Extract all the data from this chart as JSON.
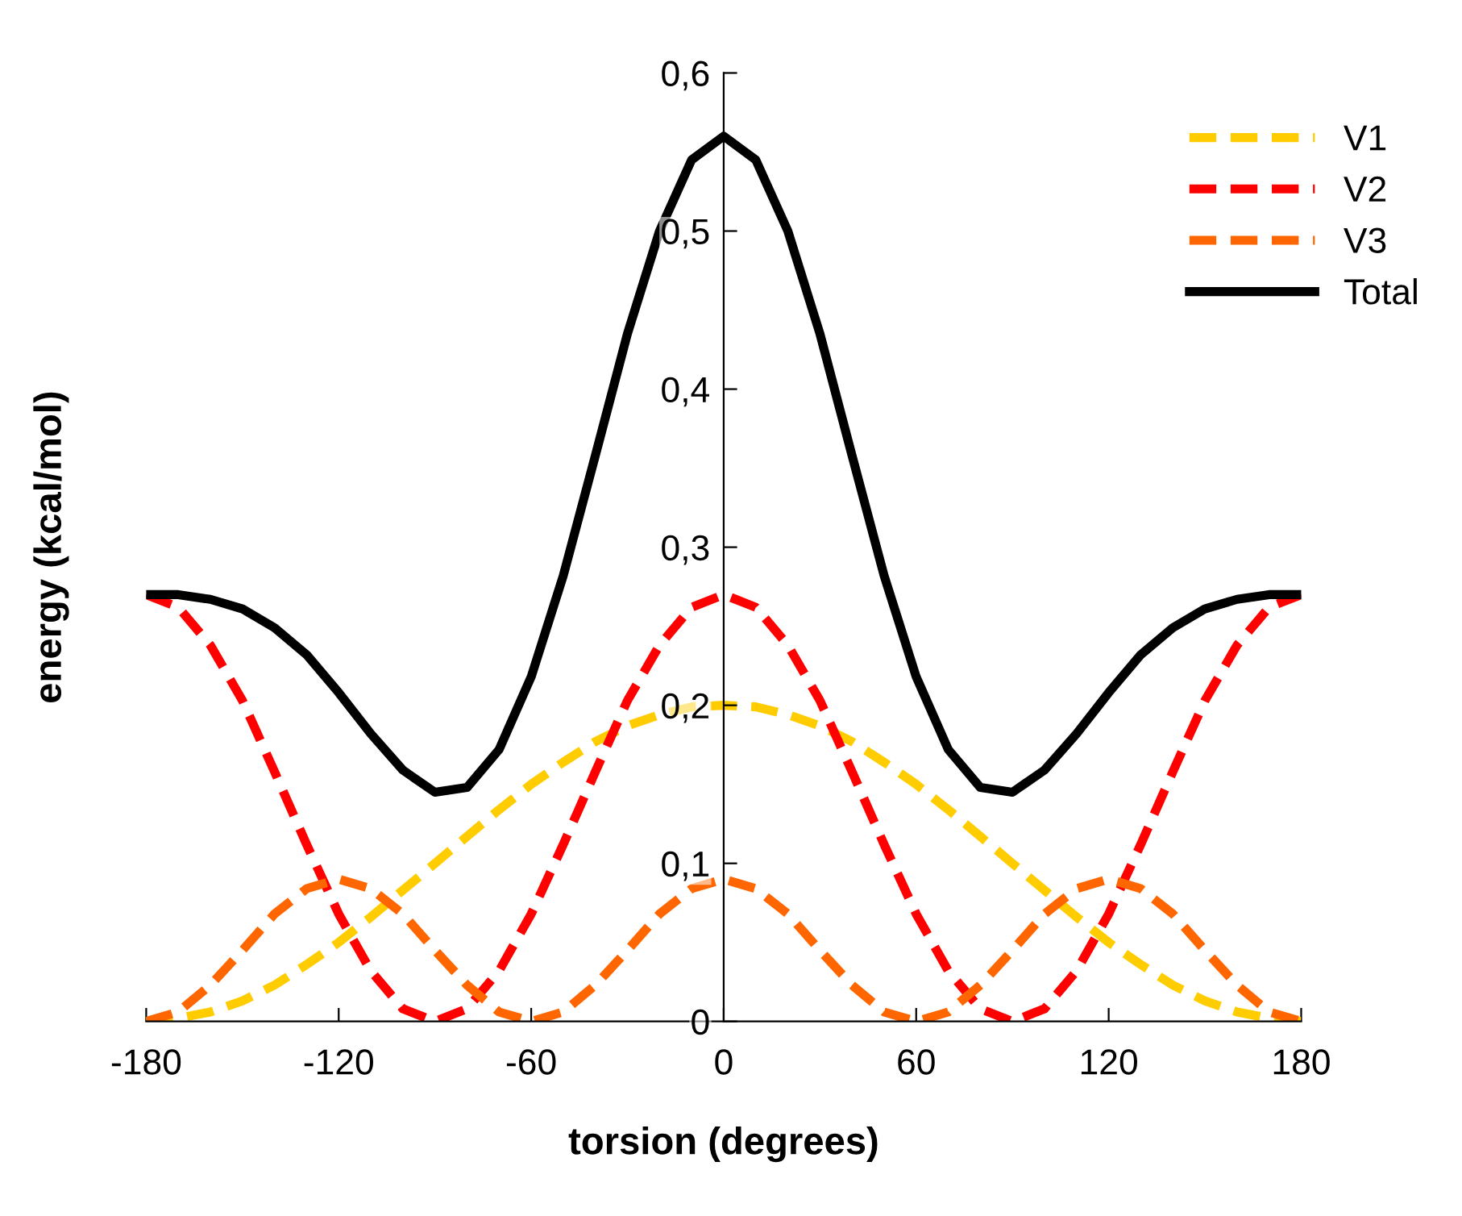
{
  "chart_data": {
    "type": "line",
    "xlabel": "torsion (degrees)",
    "ylabel": "energy (kcal/mol)",
    "x": [
      -180,
      -170,
      -160,
      -150,
      -140,
      -130,
      -120,
      -110,
      -100,
      -90,
      -80,
      -70,
      -60,
      -50,
      -40,
      -30,
      -20,
      -10,
      0,
      10,
      20,
      30,
      40,
      50,
      60,
      70,
      80,
      90,
      100,
      110,
      120,
      130,
      140,
      150,
      160,
      170,
      180
    ],
    "series": [
      {
        "name": "V1",
        "color": "#ffcc00",
        "line_style": "dashed",
        "values": [
          0,
          0.002,
          0.006,
          0.013,
          0.023,
          0.036,
          0.05,
          0.066,
          0.083,
          0.1,
          0.117,
          0.134,
          0.15,
          0.164,
          0.177,
          0.187,
          0.194,
          0.199,
          0.2,
          0.199,
          0.194,
          0.187,
          0.177,
          0.164,
          0.15,
          0.134,
          0.117,
          0.1,
          0.083,
          0.066,
          0.05,
          0.036,
          0.023,
          0.013,
          0.006,
          0.002,
          0
        ]
      },
      {
        "name": "V2",
        "color": "#ff0000",
        "line_style": "dashed",
        "values": [
          0.27,
          0.262,
          0.238,
          0.203,
          0.158,
          0.112,
          0.068,
          0.032,
          0.008,
          0,
          0.008,
          0.032,
          0.068,
          0.112,
          0.158,
          0.203,
          0.238,
          0.262,
          0.27,
          0.262,
          0.238,
          0.203,
          0.158,
          0.112,
          0.068,
          0.032,
          0.008,
          0,
          0.008,
          0.032,
          0.068,
          0.112,
          0.158,
          0.203,
          0.238,
          0.262,
          0.27
        ]
      },
      {
        "name": "V3",
        "color": "#ff6600",
        "line_style": "dashed",
        "values": [
          0,
          0.006,
          0.023,
          0.045,
          0.068,
          0.084,
          0.09,
          0.084,
          0.068,
          0.045,
          0.023,
          0.006,
          0,
          0.006,
          0.023,
          0.045,
          0.068,
          0.084,
          0.09,
          0.084,
          0.068,
          0.045,
          0.023,
          0.006,
          0,
          0.006,
          0.023,
          0.045,
          0.068,
          0.084,
          0.09,
          0.084,
          0.068,
          0.045,
          0.023,
          0.006,
          0
        ]
      },
      {
        "name": "Total",
        "color": "#000000",
        "line_style": "solid",
        "values": [
          0.27,
          0.27,
          0.267,
          0.261,
          0.249,
          0.232,
          0.208,
          0.182,
          0.159,
          0.145,
          0.148,
          0.172,
          0.218,
          0.282,
          0.358,
          0.435,
          0.5,
          0.545,
          0.56,
          0.545,
          0.5,
          0.435,
          0.358,
          0.282,
          0.218,
          0.172,
          0.148,
          0.145,
          0.159,
          0.182,
          0.208,
          0.232,
          0.249,
          0.261,
          0.267,
          0.27,
          0.27
        ]
      }
    ],
    "xlim": [
      -180,
      180
    ],
    "ylim": [
      0,
      0.6
    ],
    "xticks": [
      -180,
      -120,
      -60,
      0,
      60,
      120,
      180
    ],
    "yticks": [
      0,
      {
        "value": 0.1,
        "label": "0,1"
      },
      {
        "value": 0.2,
        "label": "0,2"
      },
      {
        "value": 0.3,
        "label": "0,3"
      },
      {
        "value": 0.4,
        "label": "0,4"
      },
      {
        "value": 0.5,
        "label": "0,5"
      },
      {
        "value": 0.6,
        "label": "0,6"
      }
    ],
    "grid": false,
    "legend": "top right"
  }
}
